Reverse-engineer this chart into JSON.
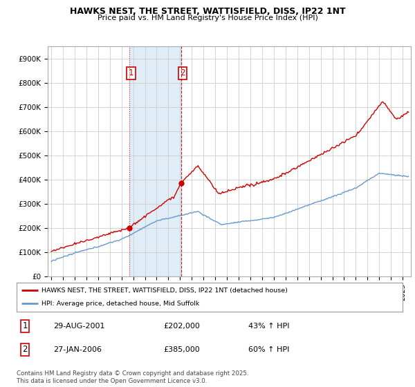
{
  "title": "HAWKS NEST, THE STREET, WATTISFIELD, DISS, IP22 1NT",
  "subtitle": "Price paid vs. HM Land Registry's House Price Index (HPI)",
  "ylim": [
    0,
    950000
  ],
  "yticks": [
    0,
    100000,
    200000,
    300000,
    400000,
    500000,
    600000,
    700000,
    800000,
    900000
  ],
  "ytick_labels": [
    "£0",
    "£100K",
    "£200K",
    "£300K",
    "£400K",
    "£500K",
    "£600K",
    "£700K",
    "£800K",
    "£900K"
  ],
  "red_line_color": "#cc0000",
  "blue_line_color": "#6699cc",
  "background_color": "#ffffff",
  "plot_bg_color": "#ffffff",
  "grid_color": "#cccccc",
  "purchase1_date_x": 2001.66,
  "purchase1_price": 202000,
  "purchase2_date_x": 2006.07,
  "purchase2_price": 385000,
  "shade_x_start": 2001.66,
  "shade_x_end": 2006.07,
  "vline1_x": 2001.66,
  "vline2_x": 2006.07,
  "legend_label_red": "HAWKS NEST, THE STREET, WATTISFIELD, DISS, IP22 1NT (detached house)",
  "legend_label_blue": "HPI: Average price, detached house, Mid Suffolk",
  "table_row1": [
    "1",
    "29-AUG-2001",
    "£202,000",
    "43% ↑ HPI"
  ],
  "table_row2": [
    "2",
    "27-JAN-2006",
    "£385,000",
    "60% ↑ HPI"
  ],
  "footer": "Contains HM Land Registry data © Crown copyright and database right 2025.\nThis data is licensed under the Open Government Licence v3.0.",
  "xlim_start": 1994.7,
  "xlim_end": 2025.7
}
